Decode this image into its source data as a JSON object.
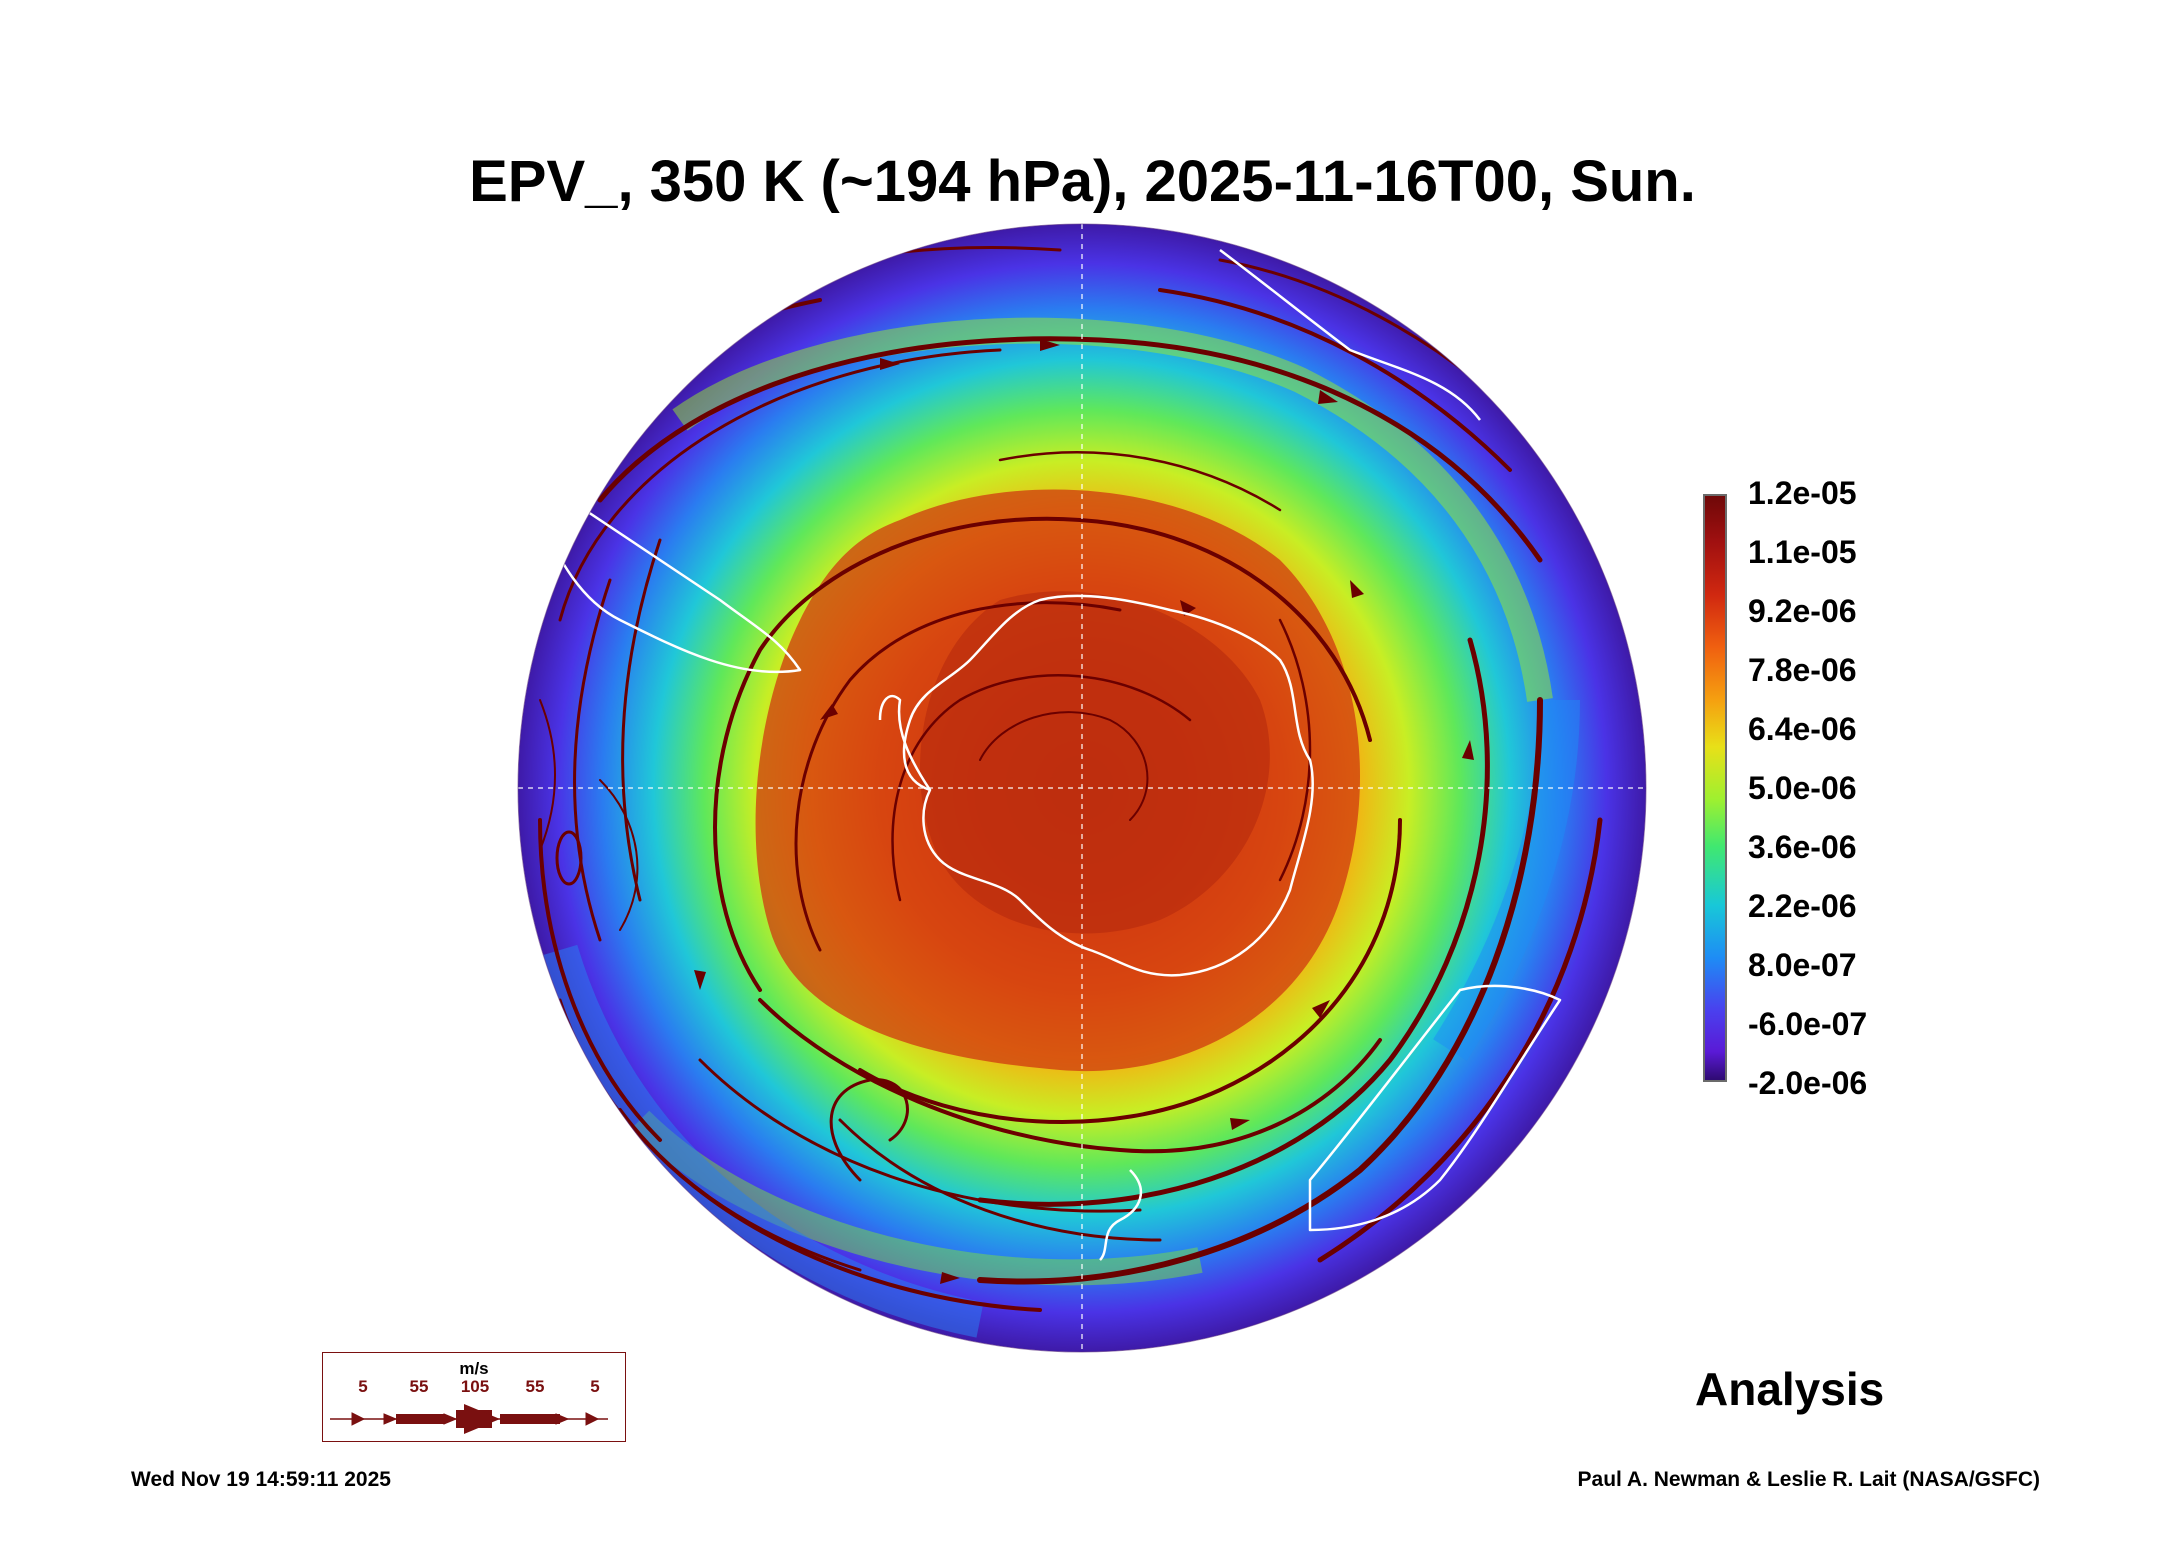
{
  "title": "EPV_, 350 K (~194 hPa), 2025-11-16T00, Sun.",
  "map": {
    "projection": "south polar orthographic",
    "field": "EPV_",
    "level": "350 K (~194 hPa)",
    "valid_time": "2025-11-16T00",
    "overlay": "wind streamlines",
    "coastlines_color": "#ffffff",
    "streamline_color": "#6b0000"
  },
  "colorbar": {
    "labels": [
      "1.2e-05",
      "1.1e-05",
      "9.2e-06",
      "7.8e-06",
      "6.4e-06",
      "5.0e-06",
      "3.6e-06",
      "2.2e-06",
      "8.0e-07",
      "-6.0e-07",
      "-2.0e-06"
    ],
    "min": -2e-06,
    "max": 1.2e-05,
    "colors": [
      "#2d0a6e",
      "#5a1ad6",
      "#3f52f0",
      "#1e8cf5",
      "#17c3e8",
      "#2de39a",
      "#7df040",
      "#d5f020",
      "#f5c310",
      "#f58010",
      "#e04010",
      "#b01010",
      "#6e0808"
    ]
  },
  "wind_legend": {
    "unit": "m/s",
    "ticks": [
      "5",
      "55",
      "105",
      "55",
      "5"
    ]
  },
  "label": "Analysis",
  "footer": {
    "timestamp": "Wed Nov 19 14:59:11 2025",
    "credit": "Paul A. Newman & Leslie R. Lait (NASA/GSFC)"
  }
}
